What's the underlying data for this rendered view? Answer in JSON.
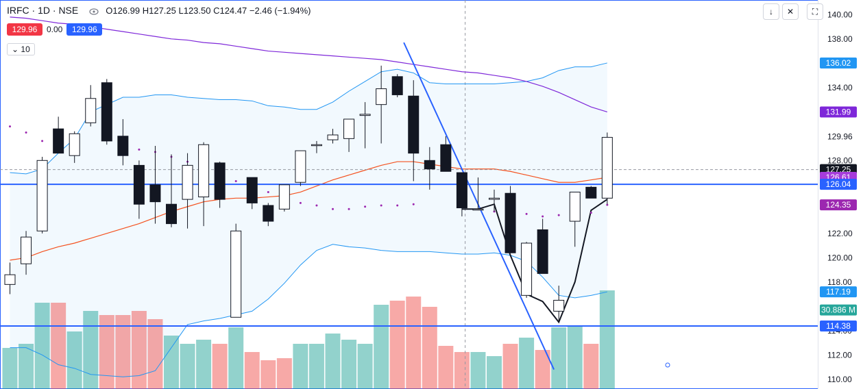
{
  "header": {
    "symbol": "IRFC · 1D · NSE",
    "ohlc": "O126.99 H127.25 L123.50 C124.47 −2.46 (−1.94%)"
  },
  "quote": {
    "bid": "129.96",
    "spread": "0.00",
    "ask": "129.96"
  },
  "collapse_label": "10",
  "toolbar": {
    "icons": [
      "arrow-down-icon",
      "collapse-icon",
      "fullscreen-icon"
    ],
    "glyphs": [
      "↓",
      "✕",
      "⛶"
    ]
  },
  "price_axis": {
    "ticks": [
      "140.00",
      "138.00",
      "134.00",
      "129.96",
      "128.00",
      "122.00",
      "120.00",
      "118.00",
      "114.00",
      "112.00",
      "110.00"
    ],
    "labels": [
      {
        "text": "136.02",
        "price": 136.02,
        "color": "#2196f3"
      },
      {
        "text": "131.99",
        "price": 131.99,
        "color": "#7e27d9"
      },
      {
        "text": "127.25",
        "price": 127.25,
        "color": "#131722"
      },
      {
        "text": "126.61",
        "price": 126.61,
        "color": "#a63cdb"
      },
      {
        "text": "126.04",
        "price": 126.04,
        "color": "#2962ff"
      },
      {
        "text": "124.35",
        "price": 124.35,
        "color": "#9c27b0"
      },
      {
        "text": "117.19",
        "price": 117.19,
        "color": "#2196f3"
      },
      {
        "text": "30.886 M",
        "price": 115.7,
        "color": "#26a69a"
      },
      {
        "text": "114.38",
        "price": 114.38,
        "color": "#2962ff"
      }
    ]
  },
  "chart_data": {
    "type": "candlestick",
    "ylim": [
      109.2,
      141.2
    ],
    "candles": [
      {
        "o": 117.8,
        "h": 119.6,
        "l": 117.0,
        "c": 118.6
      },
      {
        "o": 119.5,
        "h": 122.2,
        "l": 118.6,
        "c": 121.7
      },
      {
        "o": 122.2,
        "h": 128.3,
        "l": 122.0,
        "c": 128.0
      },
      {
        "o": 130.6,
        "h": 131.6,
        "l": 128.6,
        "c": 128.6
      },
      {
        "o": 128.4,
        "h": 130.4,
        "l": 127.8,
        "c": 130.2
      },
      {
        "o": 131.1,
        "h": 134.2,
        "l": 130.8,
        "c": 133.1
      },
      {
        "o": 134.4,
        "h": 134.7,
        "l": 129.3,
        "c": 129.6
      },
      {
        "o": 130.0,
        "h": 131.4,
        "l": 127.6,
        "c": 128.4
      },
      {
        "o": 127.6,
        "h": 128.0,
        "l": 123.2,
        "c": 124.4
      },
      {
        "o": 126.0,
        "h": 129.2,
        "l": 122.8,
        "c": 124.6
      },
      {
        "o": 124.4,
        "h": 128.5,
        "l": 122.5,
        "c": 122.8
      },
      {
        "o": 124.8,
        "h": 128.6,
        "l": 122.4,
        "c": 127.6
      },
      {
        "o": 125.0,
        "h": 129.5,
        "l": 122.6,
        "c": 129.3
      },
      {
        "o": 127.8,
        "h": 127.9,
        "l": 124.1,
        "c": 124.8
      },
      {
        "o": 115.1,
        "h": 122.8,
        "l": 115.1,
        "c": 122.2
      },
      {
        "o": 126.6,
        "h": 126.6,
        "l": 124.0,
        "c": 124.5
      },
      {
        "o": 124.3,
        "h": 124.5,
        "l": 122.6,
        "c": 123.0
      },
      {
        "o": 124.0,
        "h": 126.0,
        "l": 123.8,
        "c": 126.0
      },
      {
        "o": 126.2,
        "h": 128.8,
        "l": 125.9,
        "c": 128.8
      },
      {
        "o": 129.3,
        "h": 129.6,
        "l": 128.6,
        "c": 129.3
      },
      {
        "o": 129.7,
        "h": 130.6,
        "l": 129.4,
        "c": 130.1
      },
      {
        "o": 129.8,
        "h": 131.4,
        "l": 128.7,
        "c": 131.4
      },
      {
        "o": 131.7,
        "h": 132.8,
        "l": 129.0,
        "c": 131.8
      },
      {
        "o": 132.6,
        "h": 135.8,
        "l": 129.4,
        "c": 133.9
      },
      {
        "o": 134.9,
        "h": 135.1,
        "l": 133.2,
        "c": 133.4
      },
      {
        "o": 133.3,
        "h": 134.6,
        "l": 126.3,
        "c": 128.6
      },
      {
        "o": 128.0,
        "h": 129.1,
        "l": 125.6,
        "c": 127.3
      },
      {
        "o": 129.3,
        "h": 130.0,
        "l": 127.1,
        "c": 127.1
      },
      {
        "o": 127.0,
        "h": 127.0,
        "l": 123.4,
        "c": 124.1
      },
      {
        "o": 124.0,
        "h": 126.6,
        "l": 123.9,
        "c": 124.0
      },
      {
        "o": 124.8,
        "h": 125.6,
        "l": 123.8,
        "c": 124.9
      },
      {
        "o": 125.3,
        "h": 125.9,
        "l": 120.7,
        "c": 120.4
      },
      {
        "o": 116.9,
        "h": 121.3,
        "l": 116.7,
        "c": 121.2
      },
      {
        "o": 122.3,
        "h": 123.2,
        "l": 119.0,
        "c": 118.7
      },
      {
        "o": 115.6,
        "h": 117.7,
        "l": 114.7,
        "c": 116.5
      },
      {
        "o": 123.0,
        "h": 125.4,
        "l": 120.9,
        "c": 125.4
      },
      {
        "o": 125.8,
        "h": 125.9,
        "l": 124.9,
        "c": 124.9
      },
      {
        "o": 124.9,
        "h": 130.3,
        "l": 124.4,
        "c": 129.9
      }
    ],
    "volume": {
      "values": [
        20,
        22,
        42,
        42,
        28,
        38,
        36,
        36,
        38,
        34,
        26,
        22,
        24,
        22,
        30,
        18,
        14,
        15,
        22,
        22,
        27,
        24,
        22,
        41,
        43,
        45,
        40,
        21,
        18,
        18,
        16,
        22,
        25,
        19,
        30,
        31,
        22,
        48
      ],
      "up": [
        1,
        1,
        1,
        0,
        1,
        1,
        0,
        0,
        0,
        0,
        1,
        1,
        1,
        0,
        1,
        0,
        0,
        0,
        1,
        1,
        1,
        1,
        1,
        1,
        0,
        0,
        0,
        0,
        0,
        1,
        1,
        0,
        1,
        0,
        1,
        1,
        0,
        1
      ],
      "max": 100
    },
    "indicators": {
      "sma_purple": [
        139.8,
        139.7,
        139.5,
        139.3,
        139.2,
        139.0,
        138.8,
        138.6,
        138.4,
        138.2,
        138.0,
        137.9,
        137.7,
        137.6,
        137.4,
        137.2,
        137.0,
        136.9,
        136.8,
        136.7,
        136.6,
        136.5,
        136.4,
        136.3,
        136.1,
        135.9,
        135.7,
        135.5,
        135.3,
        135.2,
        135.0,
        134.8,
        134.5,
        134.1,
        133.6,
        133.0,
        132.4,
        131.99
      ],
      "ma_orange": [
        119.8,
        120.0,
        120.5,
        120.9,
        121.2,
        121.6,
        122.0,
        122.4,
        122.8,
        123.3,
        123.8,
        124.2,
        124.6,
        124.8,
        124.9,
        124.9,
        125.0,
        125.1,
        125.4,
        125.9,
        126.4,
        126.8,
        127.2,
        127.6,
        127.9,
        127.9,
        127.7,
        127.5,
        127.3,
        127.3,
        127.3,
        127.1,
        126.8,
        126.5,
        126.2,
        126.2,
        126.4,
        126.61
      ],
      "bb_upper": [
        127.0,
        126.9,
        127.3,
        128.6,
        129.8,
        132.0,
        132.6,
        133.2,
        133.2,
        133.4,
        133.4,
        133.2,
        133.1,
        133.0,
        133.0,
        132.9,
        132.5,
        132.4,
        132.2,
        132.2,
        132.8,
        133.7,
        134.5,
        135.3,
        135.5,
        135.2,
        134.4,
        134.3,
        134.3,
        134.3,
        134.3,
        134.4,
        134.5,
        134.8,
        135.4,
        135.7,
        135.7,
        136.02
      ],
      "bb_lower": [
        112.6,
        112.6,
        112.0,
        111.2,
        110.9,
        110.4,
        110.3,
        110.2,
        110.3,
        110.7,
        112.6,
        114.5,
        114.8,
        115.0,
        115.3,
        115.6,
        116.6,
        117.9,
        119.4,
        120.6,
        121.1,
        120.9,
        120.8,
        120.6,
        120.5,
        120.5,
        120.5,
        120.4,
        120.3,
        120.3,
        120.4,
        120.2,
        119.7,
        118.4,
        116.9,
        116.7,
        116.9,
        117.19
      ],
      "psar": [
        130.8,
        130.3,
        129.6,
        null,
        null,
        null,
        null,
        129.1,
        128.9,
        128.7,
        128.3,
        127.9,
        127.4,
        126.9,
        126.3,
        125.8,
        125.4,
        124.9,
        124.5,
        124.3,
        124.0,
        124.0,
        124.2,
        124.3,
        124.3,
        124.4,
        null,
        null,
        null,
        null,
        123.8,
        123.6,
        123.6,
        123.4,
        123.5,
        123.6,
        123.7,
        124.35
      ],
      "pivot_line": [
        null,
        null,
        null,
        null,
        null,
        null,
        null,
        null,
        null,
        null,
        null,
        null,
        null,
        null,
        null,
        null,
        null,
        null,
        null,
        null,
        null,
        null,
        null,
        null,
        null,
        null,
        null,
        null,
        124.0,
        124.0,
        124.4,
        120.2,
        117.0,
        116.4,
        114.7,
        118.0,
        123.9,
        124.8
      ]
    },
    "levels": [
      {
        "name": "resistance-line",
        "price": 126.04,
        "color": "#2962ff"
      },
      {
        "name": "support-line",
        "price": 114.38,
        "color": "#2962ff"
      },
      {
        "name": "last-price-line",
        "price": 127.25,
        "color": "#9598a1"
      }
    ],
    "trendline": {
      "from": {
        "bar": 24.4,
        "price": 137.7
      },
      "to": {
        "bar": 33.7,
        "price": 110.8
      }
    },
    "crosshair_bar": 28.2
  }
}
